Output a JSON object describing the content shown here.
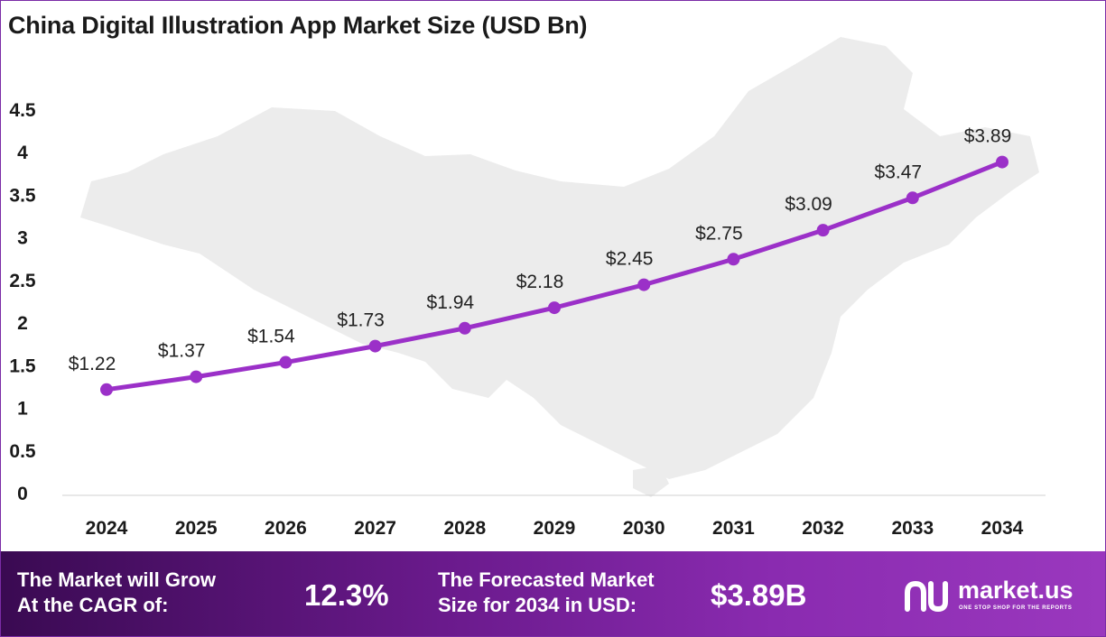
{
  "title": "China Digital Illustration App Market Size (USD Bn)",
  "chart_data": {
    "type": "line",
    "title": "China Digital Illustration App Market Size (USD Bn)",
    "categories": [
      "2024",
      "2025",
      "2026",
      "2027",
      "2028",
      "2029",
      "2030",
      "2031",
      "2032",
      "2033",
      "2034"
    ],
    "values": [
      1.22,
      1.37,
      1.54,
      1.73,
      1.94,
      2.18,
      2.45,
      2.75,
      3.09,
      3.47,
      3.89
    ],
    "data_labels": [
      "$1.22",
      "$1.37",
      "$1.54",
      "$1.73",
      "$1.94",
      "$2.18",
      "$2.45",
      "$2.75",
      "$3.09",
      "$3.47",
      "$3.89"
    ],
    "yticks": [
      "0",
      "0.5",
      "1",
      "1.5",
      "2",
      "2.5",
      "3",
      "3.5",
      "4",
      "4.5"
    ],
    "ylim": [
      0,
      4.5
    ],
    "xlabel": "",
    "ylabel": "",
    "grid": false,
    "line_color": "#9b30c8"
  },
  "banner": {
    "cagr_line1": "The Market will Grow",
    "cagr_line2": "At the CAGR of:",
    "cagr_value": "12.3%",
    "forecast_line1": "The Forecasted Market",
    "forecast_line2": "Size for 2034 in USD:",
    "forecast_value": "$3.89B"
  },
  "logo": {
    "name": "market.us",
    "tagline": "ONE STOP SHOP FOR THE REPORTS"
  },
  "colors": {
    "accent": "#9b30c8",
    "banner_dark": "#3a0a52",
    "banner_light": "#9a38be"
  }
}
